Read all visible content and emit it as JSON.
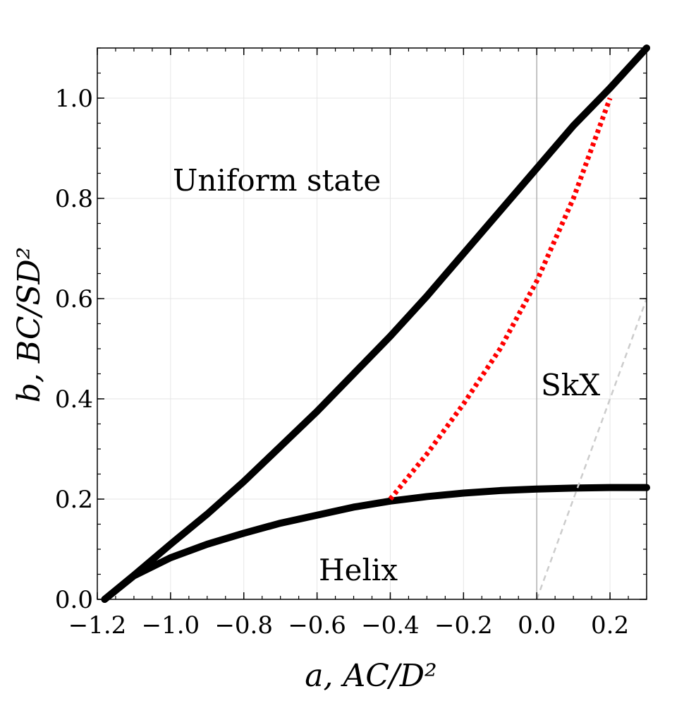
{
  "chart_data": {
    "type": "line",
    "title": "",
    "xlabel": "a, AC/D²",
    "ylabel": "b, BC/SD²",
    "xlim": [
      -1.2,
      0.3
    ],
    "ylim": [
      0.0,
      1.1
    ],
    "grid": true,
    "x_ticks": [
      "−1.2",
      "−1.0",
      "−0.8",
      "−0.6",
      "−0.4",
      "−0.2",
      "0.0",
      "0.2"
    ],
    "y_ticks": [
      "0.0",
      "0.2",
      "0.4",
      "0.6",
      "0.8",
      "1.0"
    ],
    "regions": [
      "Uniform state",
      "SkX",
      "Helix"
    ],
    "series": [
      {
        "style": "solid",
        "color": "#000000",
        "x": [
          -1.18,
          -1.1,
          -1.0,
          -0.9,
          -0.8,
          -0.7,
          -0.6,
          -0.5,
          -0.4,
          -0.3,
          -0.2,
          -0.1,
          0.0,
          0.1,
          0.2,
          0.3
        ],
        "y": [
          0.0,
          0.048,
          0.11,
          0.17,
          0.235,
          0.305,
          0.375,
          0.45,
          0.525,
          0.605,
          0.69,
          0.775,
          0.86,
          0.945,
          1.02,
          1.1
        ]
      },
      {
        "style": "solid",
        "color": "#000000",
        "x": [
          -1.18,
          -1.1,
          -1.0,
          -0.9,
          -0.8,
          -0.7,
          -0.6,
          -0.5,
          -0.4,
          -0.3,
          -0.2,
          -0.1,
          0.0,
          0.1,
          0.2,
          0.3
        ],
        "y": [
          0.0,
          0.047,
          0.083,
          0.11,
          0.132,
          0.152,
          0.168,
          0.184,
          0.196,
          0.205,
          0.212,
          0.217,
          0.22,
          0.222,
          0.223,
          0.223
        ]
      },
      {
        "style": "dotted",
        "color": "#ff0000",
        "x": [
          -0.4,
          -0.3,
          -0.2,
          -0.1,
          0.0,
          0.1,
          0.2
        ],
        "y": [
          0.2,
          0.29,
          0.39,
          0.5,
          0.635,
          0.8,
          1.0
        ]
      },
      {
        "style": "dashed",
        "color": "#cccccc",
        "x": [
          0.0,
          0.3
        ],
        "y": [
          0.0,
          0.6
        ]
      }
    ]
  }
}
